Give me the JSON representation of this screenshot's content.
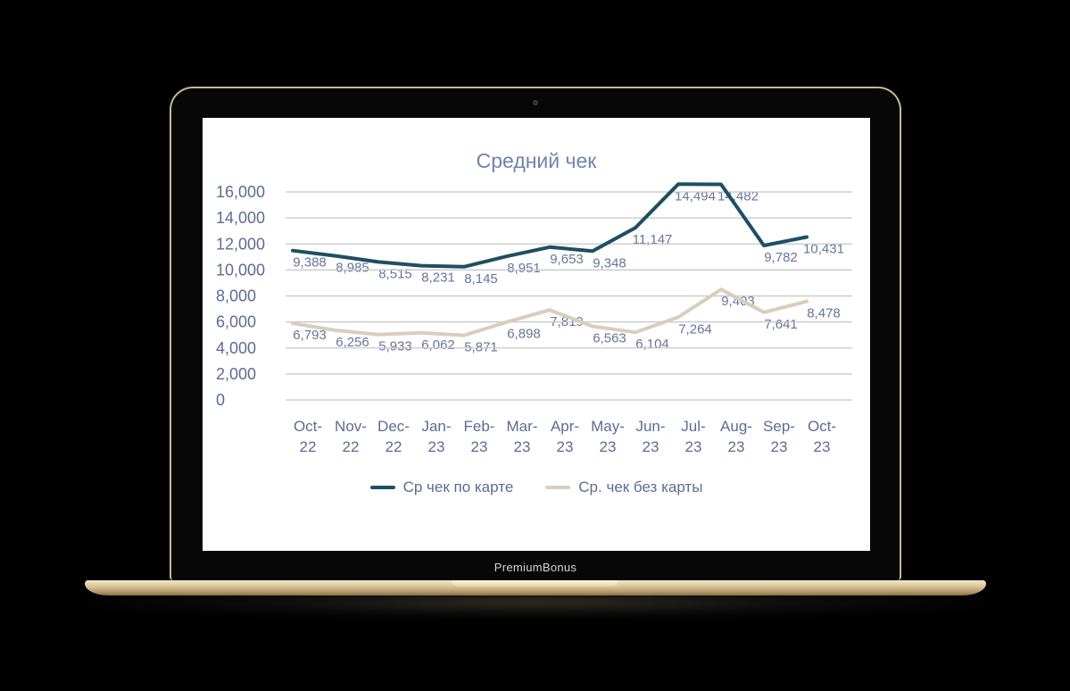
{
  "laptop": {
    "brand": "PremiumBonus"
  },
  "chart_data": {
    "type": "line",
    "title": "Средний чек",
    "categories": [
      "Oct-22",
      "Nov-22",
      "Dec-22",
      "Jan-23",
      "Feb-23",
      "Mar-23",
      "Apr-23",
      "May-23",
      "Jun-23",
      "Jul-23",
      "Aug-23",
      "Sep-23",
      "Oct-23"
    ],
    "series": [
      {
        "name": "Ср чек по карте",
        "color": "#1d4f63",
        "values": [
          9388,
          8985,
          8515,
          8231,
          8145,
          8951,
          9653,
          9348,
          11147,
          14494,
          14482,
          9782,
          10431
        ]
      },
      {
        "name": "Ср. чек без карты",
        "color": "#d9cebd",
        "values": [
          6793,
          6256,
          5933,
          6062,
          5871,
          6898,
          7819,
          6563,
          6104,
          7264,
          9403,
          7641,
          8478
        ]
      }
    ],
    "ylim": [
      0,
      16000
    ],
    "ytick_step": 2000,
    "grid": "horizontal",
    "legend_position": "bottom",
    "text_color": "#5c6c94",
    "data_label_color": "#67759c",
    "grid_color": "#c6c6c6"
  }
}
